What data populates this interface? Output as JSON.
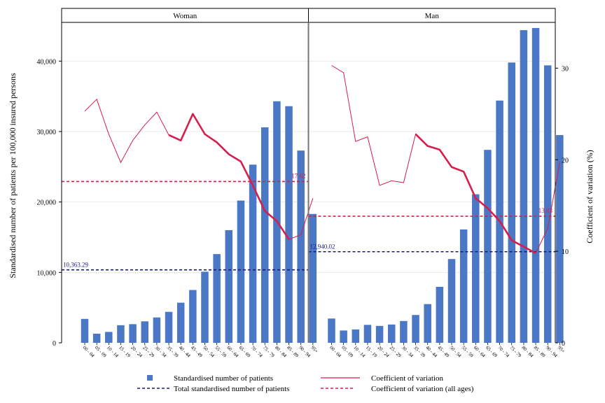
{
  "chart_data": {
    "type": "bar",
    "panels": [
      "Woman",
      "Man"
    ],
    "categories": [
      "00 - 04",
      "05 - 09",
      "10 - 14",
      "15 - 19",
      "20 - 24",
      "25 - 29",
      "30 - 34",
      "35 - 39",
      "40 - 44",
      "45 - 49",
      "50 - 54",
      "55 - 59",
      "60 - 64",
      "65 - 69",
      "70 - 74",
      "75 - 79",
      "80 - 84",
      "85 - 89",
      "90 - 94",
      "95+"
    ],
    "ylabel": "Standardised number of patients per 100,000 insured persons",
    "y2label": "Coefficient of variation (%)",
    "ylim": [
      0,
      45500
    ],
    "y2lim": [
      0,
      35
    ],
    "yticks": [
      0,
      10000,
      20000,
      30000,
      40000
    ],
    "yticklabels": [
      "0",
      "10,000",
      "20,000",
      "30,000",
      "40,000"
    ],
    "y2ticks": [
      0,
      10,
      20,
      30
    ],
    "y2ticklabels": [
      "0",
      "10",
      "20",
      "30"
    ],
    "series": [
      {
        "name": "Standardised number of patients",
        "axis": "left",
        "values_by_panel": {
          "Woman": [
            3400,
            1300,
            1550,
            2500,
            2650,
            3050,
            3600,
            4400,
            5700,
            7500,
            10100,
            12600,
            16000,
            20200,
            25300,
            30600,
            34300,
            33600,
            27300,
            18300
          ],
          "Man": [
            3450,
            1750,
            1900,
            2550,
            2400,
            2600,
            3100,
            3950,
            5500,
            7950,
            11900,
            16100,
            21100,
            27400,
            34400,
            39800,
            44400,
            44700,
            39400,
            29500
          ]
        }
      },
      {
        "name": "Coefficient of variation",
        "axis": "right",
        "values_by_panel": {
          "Woman": [
            25.3,
            26.6,
            22.8,
            19.7,
            22.1,
            23.8,
            25.2,
            22.7,
            22.1,
            25.0,
            22.8,
            21.9,
            20.6,
            19.8,
            17.2,
            14.4,
            13.3,
            11.3,
            11.8,
            15.8
          ],
          "Man": [
            30.3,
            29.5,
            22.0,
            22.5,
            17.2,
            17.7,
            17.5,
            22.8,
            21.5,
            21.1,
            19.2,
            18.7,
            15.8,
            14.7,
            13.3,
            11.2,
            10.5,
            9.8,
            12.5,
            19.7
          ]
        },
        "highlight_range": [
          7,
          17
        ]
      },
      {
        "name": "Total standardised number of patients",
        "axis": "left",
        "values_by_panel": {
          "Woman": 10363.29,
          "Man": 12940.02
        },
        "labels_by_panel": {
          "Woman": "10,363.29",
          "Man": "12,940.02"
        }
      },
      {
        "name": "Coefficient of variation (all ages)",
        "axis": "right",
        "values_by_panel": {
          "Woman": 17.62,
          "Man": 13.83
        },
        "labels_by_panel": {
          "Woman": "17.62",
          "Man": "13.83"
        }
      }
    ],
    "grid": true,
    "legend_position": "bottom",
    "colors": {
      "bars": "#4a78c4",
      "cv": "#d41f4e",
      "total": "#1a1a7a",
      "grid": "#e8e8e8",
      "separator": "#777777"
    }
  },
  "legend": {
    "items": [
      {
        "label": "Standardised number of patients",
        "style": "square",
        "color": "#4a78c4"
      },
      {
        "label": "Coefficient of variation",
        "style": "line",
        "color": "#d41f4e"
      },
      {
        "label": "Total standardised number of patients",
        "style": "dash",
        "color": "#1a1a7a"
      },
      {
        "label": "Coefficient of variation (all ages)",
        "style": "dash",
        "color": "#d41f4e"
      }
    ]
  }
}
